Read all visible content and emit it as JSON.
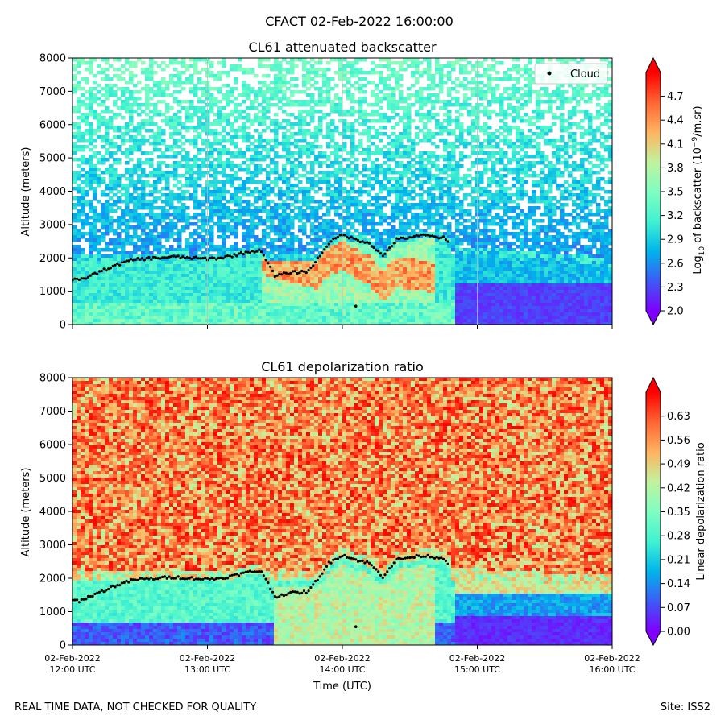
{
  "figure": {
    "suptitle": "CFACT 02-Feb-2022 16:00:00",
    "footer_left": "REAL TIME DATA, NOT CHECKED FOR QUALITY",
    "footer_right": "Site: ISS2"
  },
  "colors": {
    "cloud_marker": "#000000",
    "colormap": [
      "#7f00ff",
      "#3e5af6",
      "#00b4eb",
      "#40f2d1",
      "#7ffec1",
      "#c1f29e",
      "#ffb360",
      "#ff6533",
      "#ff0000"
    ]
  },
  "chart_data": [
    {
      "type": "heatmap",
      "title": "CL61 attenuated backscatter",
      "xlabel": "",
      "ylabel": "Altitude (meters)",
      "ylim": [
        0,
        8000
      ],
      "yticks": [
        "0",
        "1000",
        "2000",
        "3000",
        "4000",
        "5000",
        "6000",
        "7000",
        "8000"
      ],
      "xticks": [],
      "legend": {
        "label": "Cloud",
        "position": "top-right"
      },
      "colorbar": {
        "label_main": "Log",
        "label_sub": "10",
        "label_rest": " of backscatter (10",
        "label_sup": "−9",
        "label_end": "/m.sr)",
        "range": [
          2.0,
          5.0
        ],
        "ticks": [
          "2.0",
          "2.3",
          "2.6",
          "2.9",
          "3.2",
          "3.5",
          "3.8",
          "4.1",
          "4.4",
          "4.7"
        ]
      }
    },
    {
      "type": "heatmap",
      "title": "CL61 depolarization ratio",
      "xlabel": "Time (UTC)",
      "ylabel": "Altitude (meters)",
      "ylim": [
        0,
        8000
      ],
      "yticks": [
        "0",
        "1000",
        "2000",
        "3000",
        "4000",
        "5000",
        "6000",
        "7000",
        "8000"
      ],
      "xticks": [
        {
          "date": "02-Feb-2022",
          "time": "12:00 UTC"
        },
        {
          "date": "02-Feb-2022",
          "time": "13:00 UTC"
        },
        {
          "date": "02-Feb-2022",
          "time": "14:00 UTC"
        },
        {
          "date": "02-Feb-2022",
          "time": "15:00 UTC"
        },
        {
          "date": "02-Feb-2022",
          "time": "16:00 UTC"
        }
      ],
      "colorbar": {
        "label": "Linear depolarization ratio",
        "range": [
          0.0,
          0.7
        ],
        "ticks": [
          "0.00",
          "0.07",
          "0.14",
          "0.21",
          "0.28",
          "0.35",
          "0.42",
          "0.49",
          "0.56",
          "0.63"
        ]
      }
    }
  ],
  "cloud_base": {
    "x_hours": [
      12.0,
      12.05,
      12.3,
      12.45,
      12.55,
      12.75,
      13.0,
      13.1,
      13.2,
      13.3,
      13.4,
      13.5,
      13.6,
      13.75,
      13.9,
      14.0,
      14.1,
      14.2,
      14.3,
      14.4,
      14.5,
      14.6,
      14.75,
      14.8
    ],
    "y_m": [
      1350,
      1320,
      1750,
      1950,
      1980,
      2030,
      1970,
      2000,
      2080,
      2180,
      2220,
      1450,
      1550,
      1600,
      2450,
      2700,
      2550,
      2450,
      2050,
      2550,
      2620,
      2680,
      2600,
      2400
    ]
  }
}
